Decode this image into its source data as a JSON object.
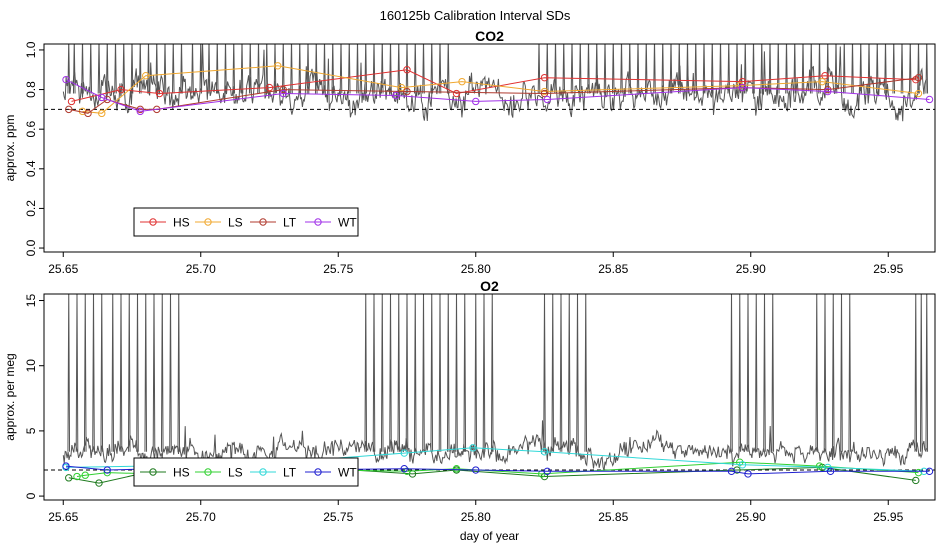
{
  "figure": {
    "title": "160125b   Calibration Interval SDs"
  },
  "chart_data": [
    {
      "type": "line",
      "title": "CO2",
      "xlabel": "",
      "ylabel": "approx. ppm",
      "xlim": [
        25.643,
        25.967
      ],
      "ylim": [
        -0.02,
        1.03
      ],
      "xticks": [
        25.65,
        25.7,
        25.75,
        25.8,
        25.85,
        25.9,
        25.95
      ],
      "xtick_labels": [
        "25.65",
        "25.70",
        "25.75",
        "25.80",
        "25.85",
        "25.90",
        "25.95"
      ],
      "yticks": [
        0.0,
        0.2,
        0.4,
        0.6,
        0.8,
        1.0
      ],
      "ytick_labels": [
        "0.0",
        "0.2",
        "0.4",
        "0.6",
        "0.8",
        "1.0"
      ],
      "reference_line": 0.7,
      "background_trace": {
        "color": "#555555",
        "baseline": 0.78,
        "amplitude": 0.1,
        "clip_max": 1.03,
        "clip_min": 0.46,
        "seed": 7,
        "spikes": [
          25.652,
          25.654,
          25.657,
          25.66,
          25.663,
          25.666,
          25.669,
          25.672,
          25.675,
          25.678,
          25.681,
          25.684,
          25.687,
          25.69,
          25.693,
          25.697,
          25.7,
          25.703,
          25.706,
          25.709,
          25.712,
          25.715,
          25.718,
          25.721,
          25.724,
          25.727,
          25.73,
          25.733,
          25.736,
          25.739,
          25.742,
          25.745,
          25.748,
          25.751,
          25.754,
          25.757,
          25.76,
          25.763,
          25.766,
          25.769,
          25.772,
          25.775,
          25.778,
          25.781,
          25.784,
          25.787,
          25.79,
          25.823,
          25.826,
          25.829,
          25.832,
          25.835,
          25.838,
          25.841,
          25.844,
          25.847,
          25.85,
          25.853,
          25.856,
          25.859,
          25.862,
          25.865,
          25.868,
          25.871,
          25.874,
          25.877,
          25.88,
          25.883,
          25.886,
          25.889,
          25.892,
          25.895,
          25.898,
          25.901,
          25.904,
          25.907,
          25.91,
          25.913,
          25.916,
          25.919,
          25.922,
          25.925,
          25.928,
          25.931,
          25.934,
          25.937,
          25.94,
          25.943,
          25.946,
          25.949,
          25.952,
          25.955,
          25.958,
          25.961,
          25.964
        ]
      },
      "legend": {
        "placement": "bottom-left",
        "entries": [
          "HS",
          "LS",
          "LT",
          "WT"
        ]
      },
      "series": [
        {
          "name": "HS",
          "color": "#e03030",
          "x": [
            25.653,
            25.671,
            25.685,
            25.725,
            25.775,
            25.793,
            25.825,
            25.897,
            25.927,
            25.96
          ],
          "y": [
            0.74,
            0.8,
            0.78,
            0.81,
            0.9,
            0.78,
            0.86,
            0.84,
            0.87,
            0.85
          ]
        },
        {
          "name": "LS",
          "color": "#f0a830",
          "x": [
            25.657,
            25.664,
            25.68,
            25.728,
            25.773,
            25.795,
            25.825,
            25.896,
            25.926,
            25.961
          ],
          "y": [
            0.69,
            0.68,
            0.87,
            0.92,
            0.81,
            0.84,
            0.79,
            0.82,
            0.84,
            0.78
          ]
        },
        {
          "name": "LT",
          "color": "#b03a2e",
          "x": [
            25.652,
            25.659,
            25.666,
            25.678,
            25.684,
            25.73,
            25.775,
            25.825,
            25.897,
            25.928,
            25.961
          ],
          "y": [
            0.7,
            0.68,
            0.75,
            0.7,
            0.7,
            0.8,
            0.79,
            0.78,
            0.81,
            0.8,
            0.86
          ]
        },
        {
          "name": "WT",
          "color": "#a030e8",
          "x": [
            25.651,
            25.664,
            25.678,
            25.73,
            25.771,
            25.8,
            25.826,
            25.897,
            25.928,
            25.965
          ],
          "y": [
            0.85,
            0.76,
            0.69,
            0.78,
            0.77,
            0.74,
            0.75,
            0.81,
            0.79,
            0.75
          ]
        }
      ]
    },
    {
      "type": "line",
      "title": "O2",
      "xlabel": "day of year",
      "ylabel": "approx. per meg",
      "xlim": [
        25.643,
        25.967
      ],
      "ylim": [
        -0.3,
        15.5
      ],
      "xticks": [
        25.65,
        25.7,
        25.75,
        25.8,
        25.85,
        25.9,
        25.95
      ],
      "xtick_labels": [
        "25.65",
        "25.70",
        "25.75",
        "25.80",
        "25.85",
        "25.90",
        "25.95"
      ],
      "yticks": [
        0,
        5,
        10,
        15
      ],
      "ytick_labels": [
        "0",
        "5",
        "10",
        "15"
      ],
      "reference_line": 2.0,
      "background_trace": {
        "color": "#555555",
        "baseline": 3.4,
        "amplitude": 1.0,
        "clip_max": 15.5,
        "clip_min": 1.8,
        "seed": 13,
        "spikes": [
          25.652,
          25.655,
          25.658,
          25.661,
          25.664,
          25.668,
          25.671,
          25.674,
          25.677,
          25.68,
          25.683,
          25.686,
          25.689,
          25.692,
          25.76,
          25.763,
          25.766,
          25.769,
          25.772,
          25.775,
          25.778,
          25.781,
          25.784,
          25.787,
          25.79,
          25.793,
          25.796,
          25.8,
          25.803,
          25.806,
          25.825,
          25.828,
          25.831,
          25.834,
          25.837,
          25.84,
          25.893,
          25.896,
          25.899,
          25.902,
          25.905,
          25.908,
          25.924,
          25.927,
          25.93,
          25.933,
          25.936,
          25.96,
          25.962,
          25.964
        ]
      },
      "legend": {
        "placement": "bottom-left",
        "entries": [
          "HS",
          "LS",
          "LT",
          "WT"
        ]
      },
      "series": [
        {
          "name": "HS",
          "color": "#1e7a1e",
          "x": [
            25.652,
            25.663,
            25.68,
            25.748,
            25.777,
            25.793,
            25.825,
            25.895,
            25.926,
            25.96
          ],
          "y": [
            1.4,
            1.0,
            1.8,
            2.1,
            1.7,
            2.0,
            1.5,
            2.0,
            2.2,
            1.2
          ]
        },
        {
          "name": "LS",
          "color": "#30d030",
          "x": [
            25.655,
            25.658,
            25.666,
            25.682,
            25.75,
            25.775,
            25.793,
            25.824,
            25.896,
            25.925,
            25.961
          ],
          "y": [
            1.5,
            1.6,
            1.8,
            1.7,
            2.0,
            1.9,
            2.1,
            1.7,
            2.6,
            2.3,
            1.8
          ]
        },
        {
          "name": "LT",
          "color": "#30d8d8",
          "x": [
            25.651,
            25.68,
            25.729,
            25.774,
            25.799,
            25.825,
            25.897,
            25.928,
            25.963
          ],
          "y": [
            2.2,
            2.3,
            2.6,
            3.3,
            3.7,
            3.4,
            2.4,
            2.2,
            1.9
          ]
        },
        {
          "name": "WT",
          "color": "#2020d0",
          "x": [
            25.651,
            25.666,
            25.684,
            25.73,
            25.774,
            25.8,
            25.826,
            25.893,
            25.899,
            25.929,
            25.965
          ],
          "y": [
            2.3,
            2.0,
            2.1,
            2.0,
            2.1,
            2.0,
            1.9,
            1.9,
            1.7,
            1.9,
            1.9
          ]
        }
      ]
    }
  ]
}
